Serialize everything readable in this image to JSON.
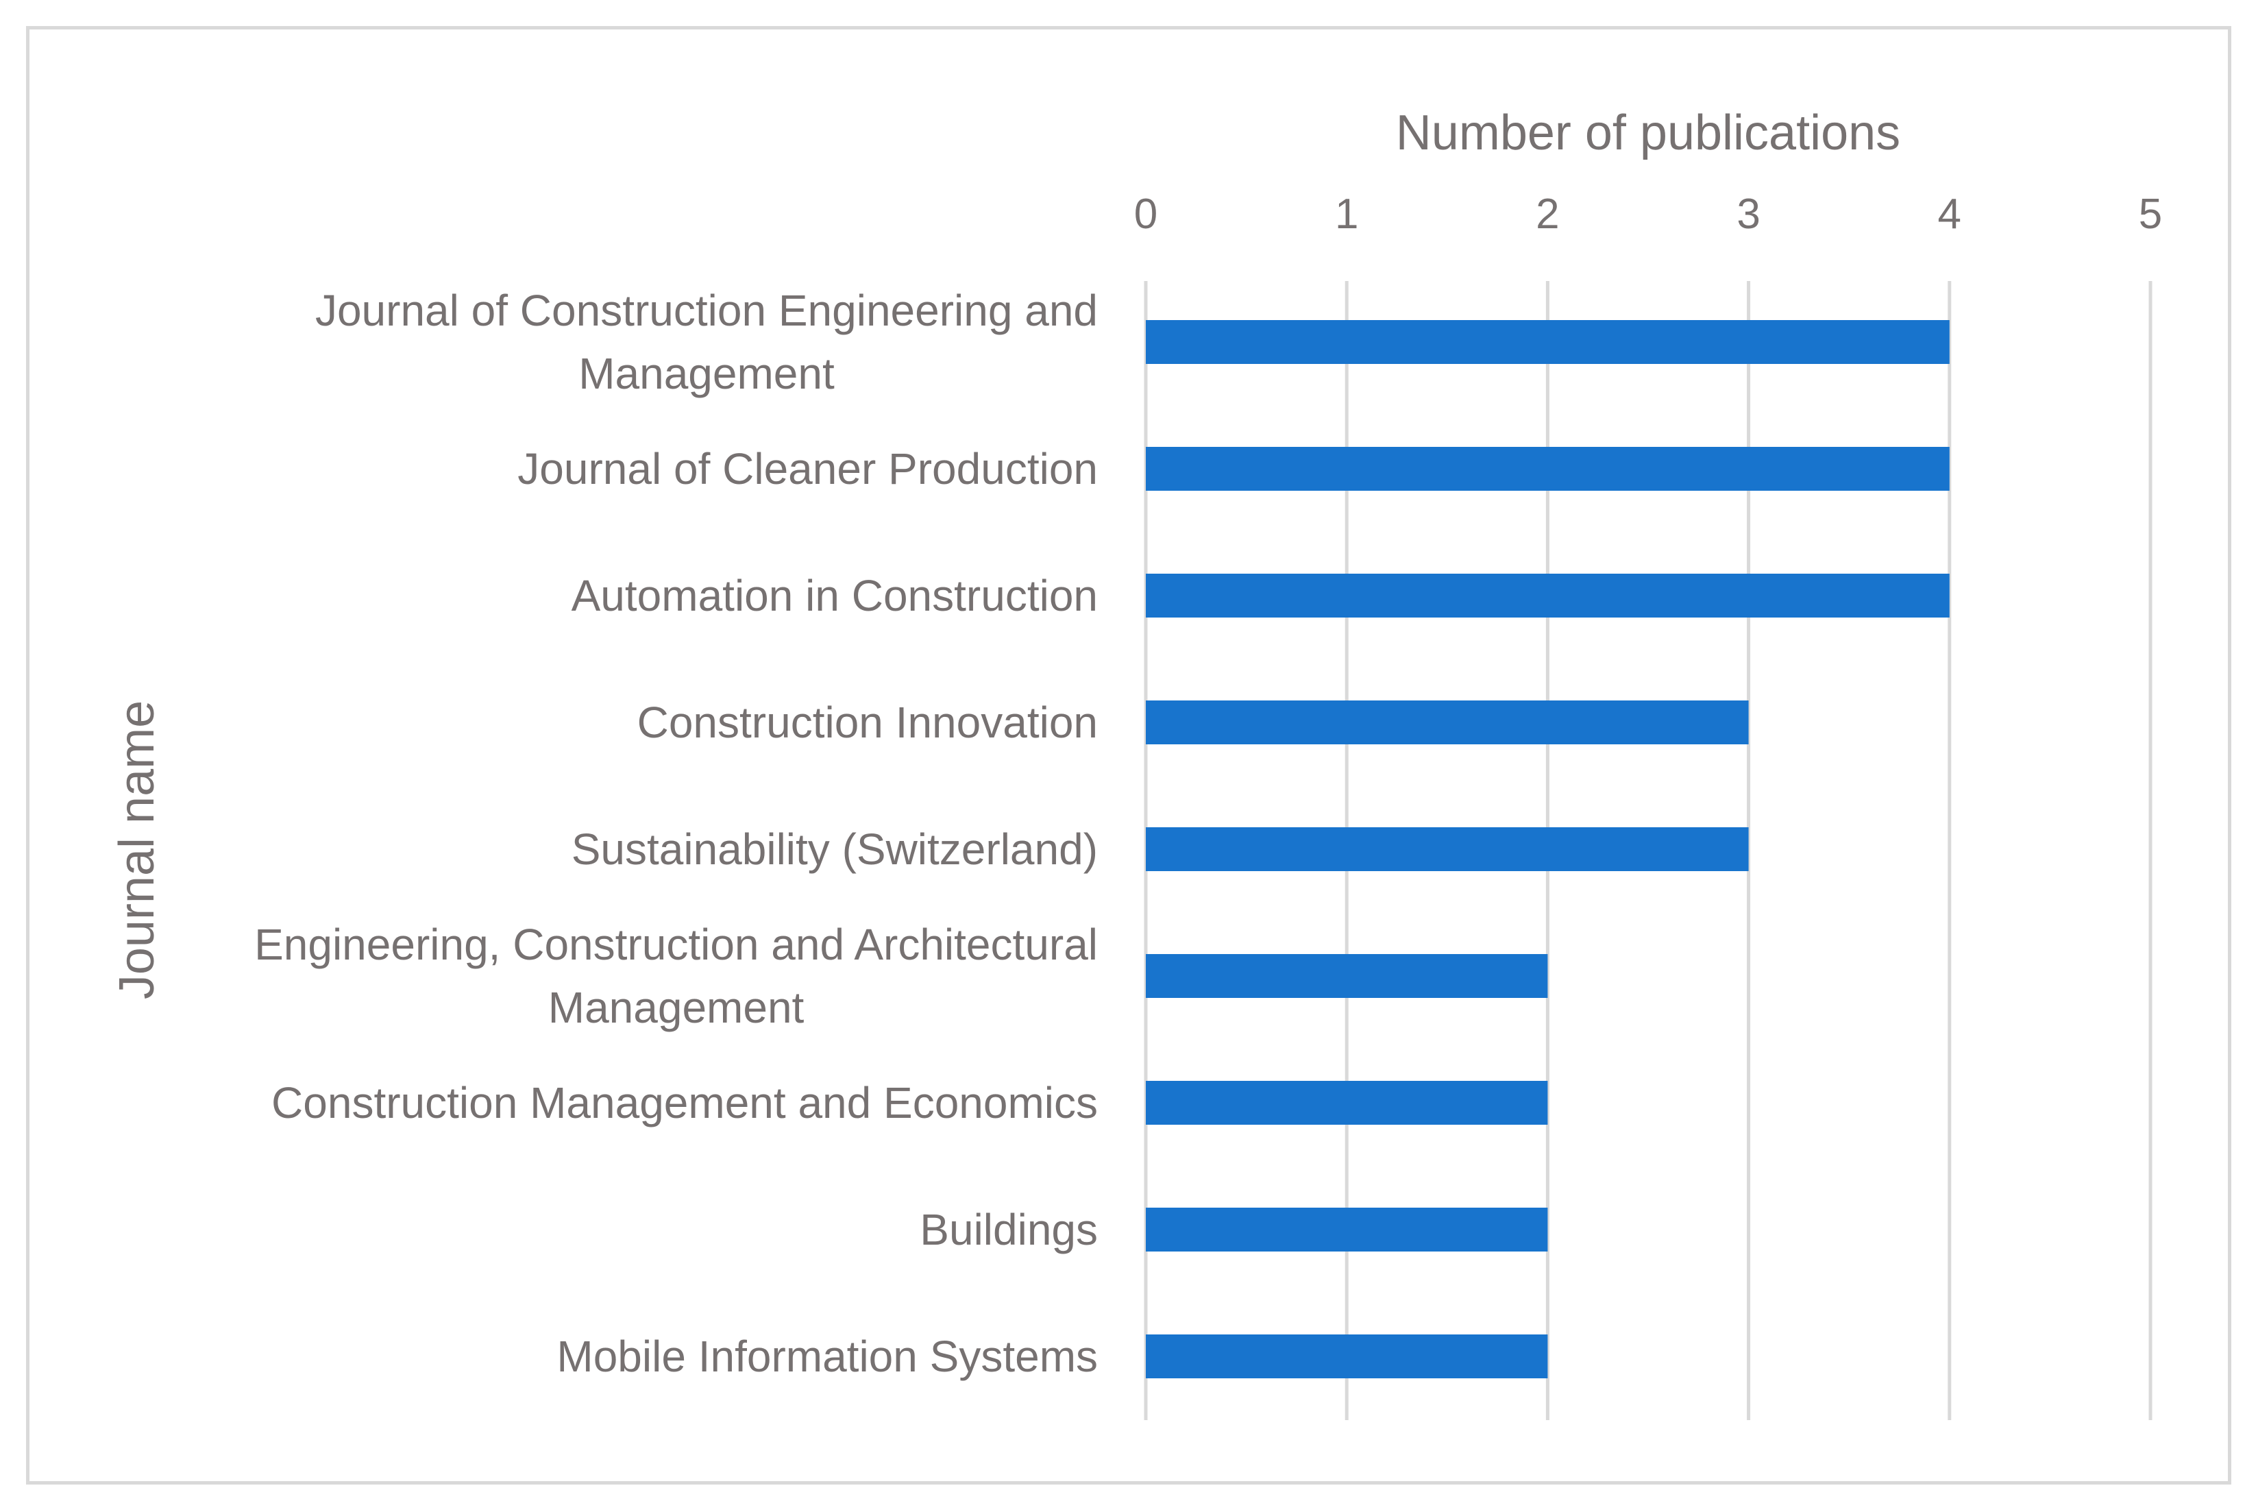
{
  "chart_data": {
    "type": "bar",
    "orientation": "horizontal",
    "title": "",
    "xlabel": "Number of publications",
    "ylabel": "Journal name",
    "x_axis_position": "top",
    "xlim": [
      0,
      5
    ],
    "x_ticks": [
      "0",
      "1",
      "2",
      "3",
      "4",
      "5"
    ],
    "grid": "vertical",
    "legend": "none",
    "bar_color": "#1874CD",
    "categories": [
      [
        "Journal of Construction Engineering and",
        "Management"
      ],
      [
        "Journal of Cleaner Production"
      ],
      [
        "Automation in Construction"
      ],
      [
        "Construction Innovation"
      ],
      [
        "Sustainability (Switzerland)"
      ],
      [
        "Engineering, Construction and Architectural",
        "Management"
      ],
      [
        "Construction Management and Economics"
      ],
      [
        "Buildings"
      ],
      [
        "Mobile Information Systems"
      ]
    ],
    "values": [
      4,
      4,
      4,
      3,
      3,
      2,
      2,
      2,
      2
    ]
  }
}
